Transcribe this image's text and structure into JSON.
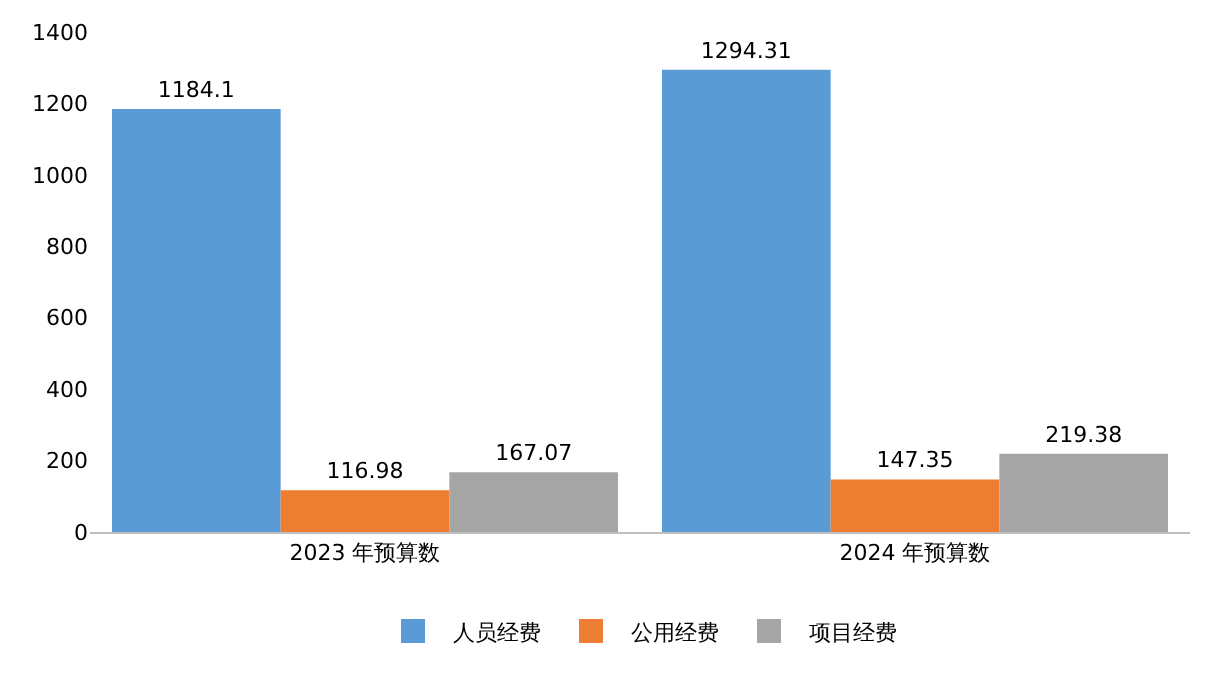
{
  "chart_data": {
    "type": "bar",
    "categories": [
      "2023 年预算数",
      "2024 年预算数"
    ],
    "series": [
      {
        "name": "人员经费",
        "color": "#5b9bd5",
        "values": [
          1184.1,
          1294.31
        ]
      },
      {
        "name": "公用经费",
        "color": "#ed7d31",
        "values": [
          116.98,
          147.35
        ]
      },
      {
        "name": "项目经费",
        "color": "#a5a5a5",
        "values": [
          167.07,
          219.38
        ]
      }
    ],
    "ylim": [
      0,
      1400
    ],
    "yticks": [
      0,
      200,
      400,
      600,
      800,
      1000,
      1200,
      1400
    ],
    "legend": "bottom",
    "data_labels": true
  }
}
